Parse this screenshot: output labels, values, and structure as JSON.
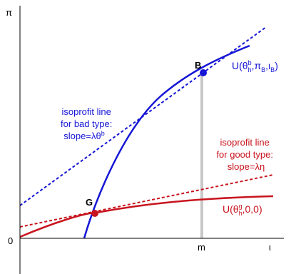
{
  "axes": {
    "y_label": "π",
    "origin_label": "0",
    "x_label": "ι",
    "m_label": "m"
  },
  "points": {
    "bad": "B",
    "good": "G"
  },
  "curves": {
    "bad_label": {
      "pre": "U(θ",
      "sup": "b",
      "sub": "h",
      "mid1": ",π",
      "sub2": "B",
      "mid2": ",ι",
      "sub3": "B",
      "end": ")"
    },
    "good_label": {
      "pre": "U(θ",
      "sup": "g",
      "sub": "h",
      "end": ",0,0)"
    }
  },
  "annotations": {
    "bad_line": [
      "isoprofit line",
      "for bad type:",
      "slope=λθ"
    ],
    "bad_line_sup": "b",
    "good_line": [
      "isoprofit line",
      "for good type:",
      "slope=λη"
    ]
  },
  "colors": {
    "blue": "#1515d6",
    "red": "#c8141e",
    "gray": "#c8c8c8",
    "axis": "#000000"
  }
}
